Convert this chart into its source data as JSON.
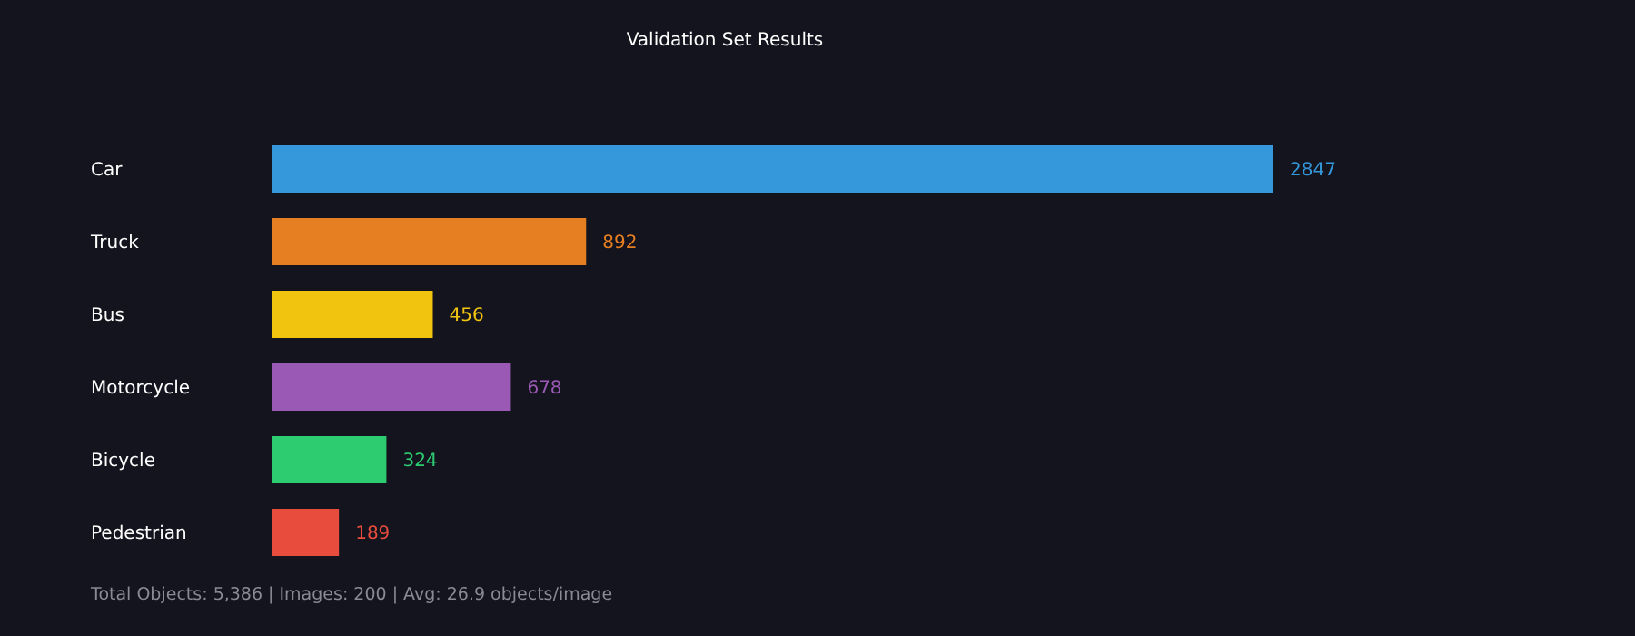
{
  "chart_data": {
    "type": "bar",
    "orientation": "horizontal",
    "title": "Validation Set Results",
    "categories": [
      "Car",
      "Truck",
      "Bus",
      "Motorcycle",
      "Bicycle",
      "Pedestrian"
    ],
    "values": [
      2847,
      892,
      456,
      678,
      324,
      189
    ],
    "colors": [
      "#3498db",
      "#e67e22",
      "#f1c40f",
      "#9b59b6",
      "#2ecc71",
      "#e74c3c"
    ],
    "data_labels": true,
    "annotations": [
      "Total Objects: 5,386 | Images: 200 | Avg: 26.9 objects/image"
    ]
  }
}
